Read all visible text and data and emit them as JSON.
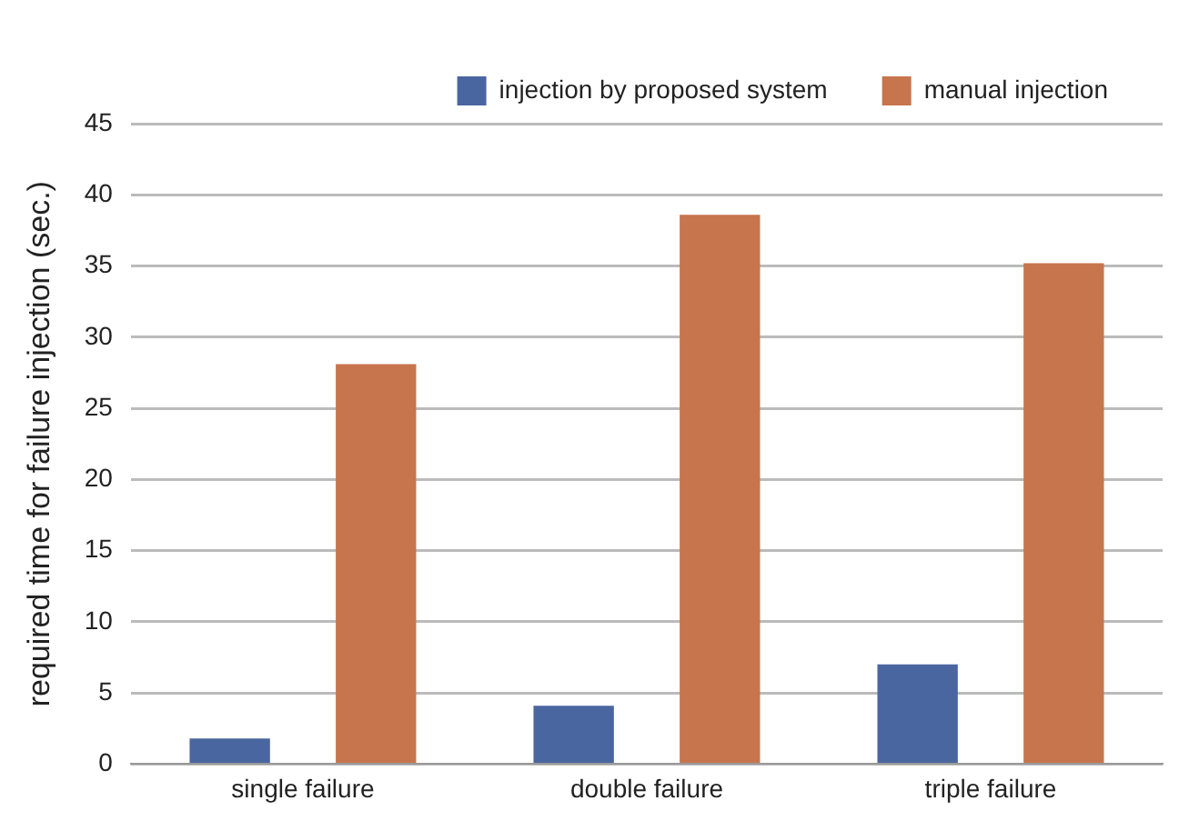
{
  "chart_data": {
    "type": "bar",
    "ylabel": "required time for failure injection (sec.)",
    "categories": [
      "single failure",
      "double failure",
      "triple failure"
    ],
    "series": [
      {
        "name": "injection by proposed system",
        "color": "#4a66a0",
        "values": [
          1.8,
          4.1,
          7.0
        ]
      },
      {
        "name": "manual injection",
        "color": "#c7754c",
        "values": [
          28.1,
          38.6,
          35.2
        ]
      }
    ],
    "ylim": [
      0,
      45
    ],
    "yticks": [
      0,
      5,
      10,
      15,
      20,
      25,
      30,
      35,
      40,
      45
    ],
    "grid": "y",
    "legend": "top"
  }
}
